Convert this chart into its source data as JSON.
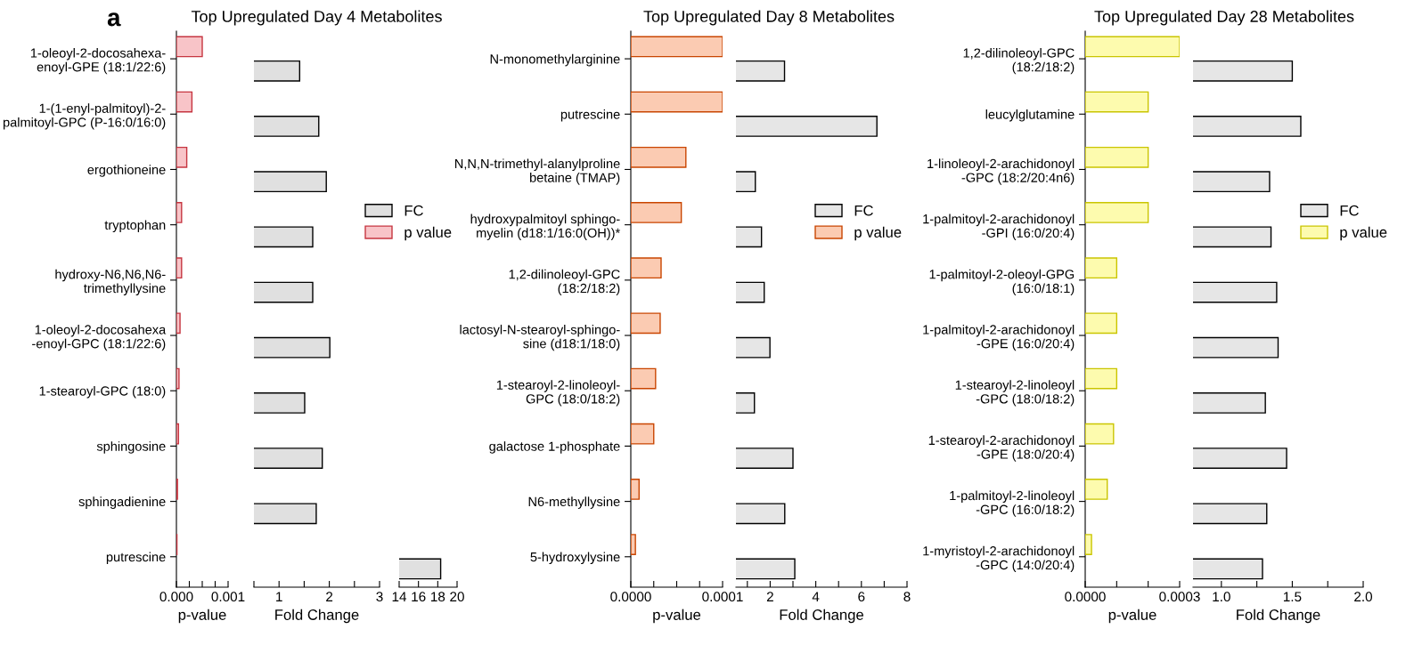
{
  "chart_data": [
    {
      "type": "bar",
      "orientation": "horizontal",
      "title": "Top Upregulated Day 4 Metabolites",
      "xlabel": "p-value",
      "annotations": [
        "a"
      ],
      "legend": "right",
      "categories": [
        "1-oleoyl-2-docosahexa-\nenoyl-GPE (18:1/22:6)",
        "1-(1-enyl-palmitoyl)-2-\npalmitoyl-GPC (P-16:0/16:0)",
        "ergothioneine",
        "tryptophan",
        "hydroxy-N6,N6,N6-\ntrimethyllysine",
        "1-oleoyl-2-docosahexa\n-enoyl-GPC (18:1/22:6)",
        "1-stearoyl-GPC (18:0)",
        "sphingosine",
        "sphingadienine",
        "putrescine"
      ],
      "series": [
        {
          "name": "p value",
          "color": "#f8c4c8",
          "values": [
            0.0005,
            0.0003,
            0.0002,
            0.0001,
            0.0001,
            7e-05,
            5e-05,
            4e-05,
            2e-05,
            1e-05
          ]
        }
      ],
      "xlim": [
        0,
        0.001
      ],
      "xticks": [
        {
          "value": 0,
          "label": "0.000"
        },
        {
          "value": 0.00025,
          "label": null
        },
        {
          "value": 0.0005,
          "label": null
        },
        {
          "value": 0.00075,
          "label": null
        },
        {
          "value": 0.001,
          "label": "0.001"
        }
      ]
    },
    {
      "type": "bar",
      "orientation": "horizontal",
      "xlabel": "Fold Change",
      "tick_labels": "x",
      "legend": "right",
      "series": [
        {
          "name": "FC",
          "color": "#e0e0e0",
          "values": [
            1.41,
            1.79,
            1.94,
            1.67,
            1.67,
            2.01,
            1.51,
            1.86,
            1.74,
            null
          ]
        }
      ],
      "xlim": [
        0.5,
        3
      ],
      "xticks": [
        {
          "value": 0.5,
          "label": null
        },
        1,
        {
          "value": 1.5,
          "label": null
        },
        2,
        {
          "value": 2.5,
          "label": null
        },
        3
      ]
    },
    {
      "type": "bar",
      "orientation": "horizontal",
      "tick_labels": "x",
      "series": [
        {
          "color": "#e0e0e0",
          "values": [
            null,
            null,
            null,
            null,
            null,
            null,
            null,
            null,
            null,
            18.3
          ]
        }
      ],
      "xlim": [
        14,
        20
      ],
      "xticks": [
        14,
        16,
        18,
        20
      ]
    },
    {
      "type": "bar",
      "orientation": "horizontal",
      "title": "Top Upregulated Day 8 Metabolites",
      "xlabel": "p-value",
      "legend": "right",
      "categories": [
        "N-monomethylarginine",
        "putrescine",
        "N,N,N-trimethyl-alanylproline\nbetaine (TMAP)",
        "hydroxypalmitoyl sphingo-\nmyelin (d18:1/16:0(OH))*",
        "1,2-dilinoleoyl-GPC\n(18:2/18:2)",
        "lactosyl-N-stearoyl-sphingo-\nsine (d18:1/18:0)",
        "1-stearoyl-2-linoleoyl-\nGPC (18:0/18:2)",
        "galactose 1-phosphate",
        "N6-methyllysine",
        "5-hydroxylysine"
      ],
      "series": [
        {
          "name": "p value",
          "color": "#fbcbb2",
          "values": [
            0.0001,
            0.0001,
            6e-05,
            5.5e-05,
            3.3e-05,
            3.2e-05,
            2.7e-05,
            2.5e-05,
            9e-06,
            5e-06
          ]
        }
      ],
      "xlim": [
        0,
        0.0001
      ],
      "xticks": [
        {
          "value": 0,
          "label": "0.0000"
        },
        {
          "value": 2.5e-05,
          "label": null
        },
        {
          "value": 5e-05,
          "label": null
        },
        {
          "value": 7.5e-05,
          "label": null
        },
        {
          "value": 0.0001,
          "label": "0.0001"
        }
      ]
    },
    {
      "type": "bar",
      "orientation": "horizontal",
      "xlabel": "Fold Change",
      "tick_labels": "x",
      "legend": "right",
      "series": [
        {
          "name": "FC",
          "color": "#e6e6e6",
          "values": [
            2.63,
            6.68,
            1.35,
            1.62,
            1.74,
            1.99,
            1.31,
            3.0,
            2.64,
            3.08
          ]
        }
      ],
      "xlim": [
        0.5,
        8
      ],
      "xticks": [
        {
          "value": 1,
          "label": null
        },
        2,
        {
          "value": 3,
          "label": null
        },
        4,
        {
          "value": 5,
          "label": null
        },
        6,
        {
          "value": 7,
          "label": null
        },
        8
      ]
    },
    {
      "type": "bar",
      "orientation": "horizontal",
      "title": "Top Upregulated Day 28 Metabolites",
      "xlabel": "p-value",
      "legend": "right",
      "categories": [
        "1,2-dilinoleoyl-GPC\n(18:2/18:2)",
        "leucylglutamine",
        "1-linoleoyl-2-arachidonoyl\n-GPC (18:2/20:4n6)",
        "1-palmitoyl-2-arachidonoyl\n-GPI (16:0/20:4)",
        "1-palmitoyl-2-oleoyl-GPG\n(16:0/18:1)",
        "1-palmitoyl-2-arachidonoyl\n-GPE (16:0/20:4)",
        "1-stearoyl-2-linoleoyl\n-GPC (18:0/18:2)",
        "1-stearoyl-2-arachidonoyl\n-GPE (18:0/20:4)",
        "1-palmitoyl-2-linoleoyl\n-GPC (16:0/18:2)",
        "1-myristoyl-2-arachidonoyl\n-GPC (14:0/20:4)"
      ],
      "series": [
        {
          "name": "p value",
          "color": "#fdfbae",
          "values": [
            0.0003,
            0.0002,
            0.0002,
            0.0002,
            0.0001,
            0.0001,
            0.0001,
            9e-05,
            7e-05,
            2e-05
          ]
        }
      ],
      "xlim": [
        0,
        0.0003
      ],
      "xticks": [
        {
          "value": 0,
          "label": "0.0000"
        },
        {
          "value": 0.0001,
          "label": null
        },
        {
          "value": 0.0002,
          "label": null
        },
        {
          "value": 0.0003,
          "label": "0.0003"
        }
      ]
    },
    {
      "type": "bar",
      "orientation": "horizontal",
      "xlabel": "Fold Change",
      "tick_labels": "x",
      "legend": "right",
      "series": [
        {
          "name": "FC",
          "color": "#e6e6e6",
          "values": [
            1.5,
            1.56,
            1.34,
            1.35,
            1.39,
            1.4,
            1.31,
            1.46,
            1.32,
            1.29
          ]
        }
      ],
      "xlim": [
        0.8,
        2.0
      ],
      "xticks": [
        {
          "value": 1,
          "label": "1.0"
        },
        {
          "value": 1.25,
          "label": null
        },
        {
          "value": 1.5,
          "label": "1.5"
        },
        {
          "value": 1.75,
          "label": null
        },
        {
          "value": 2,
          "label": "2.0"
        }
      ]
    }
  ]
}
